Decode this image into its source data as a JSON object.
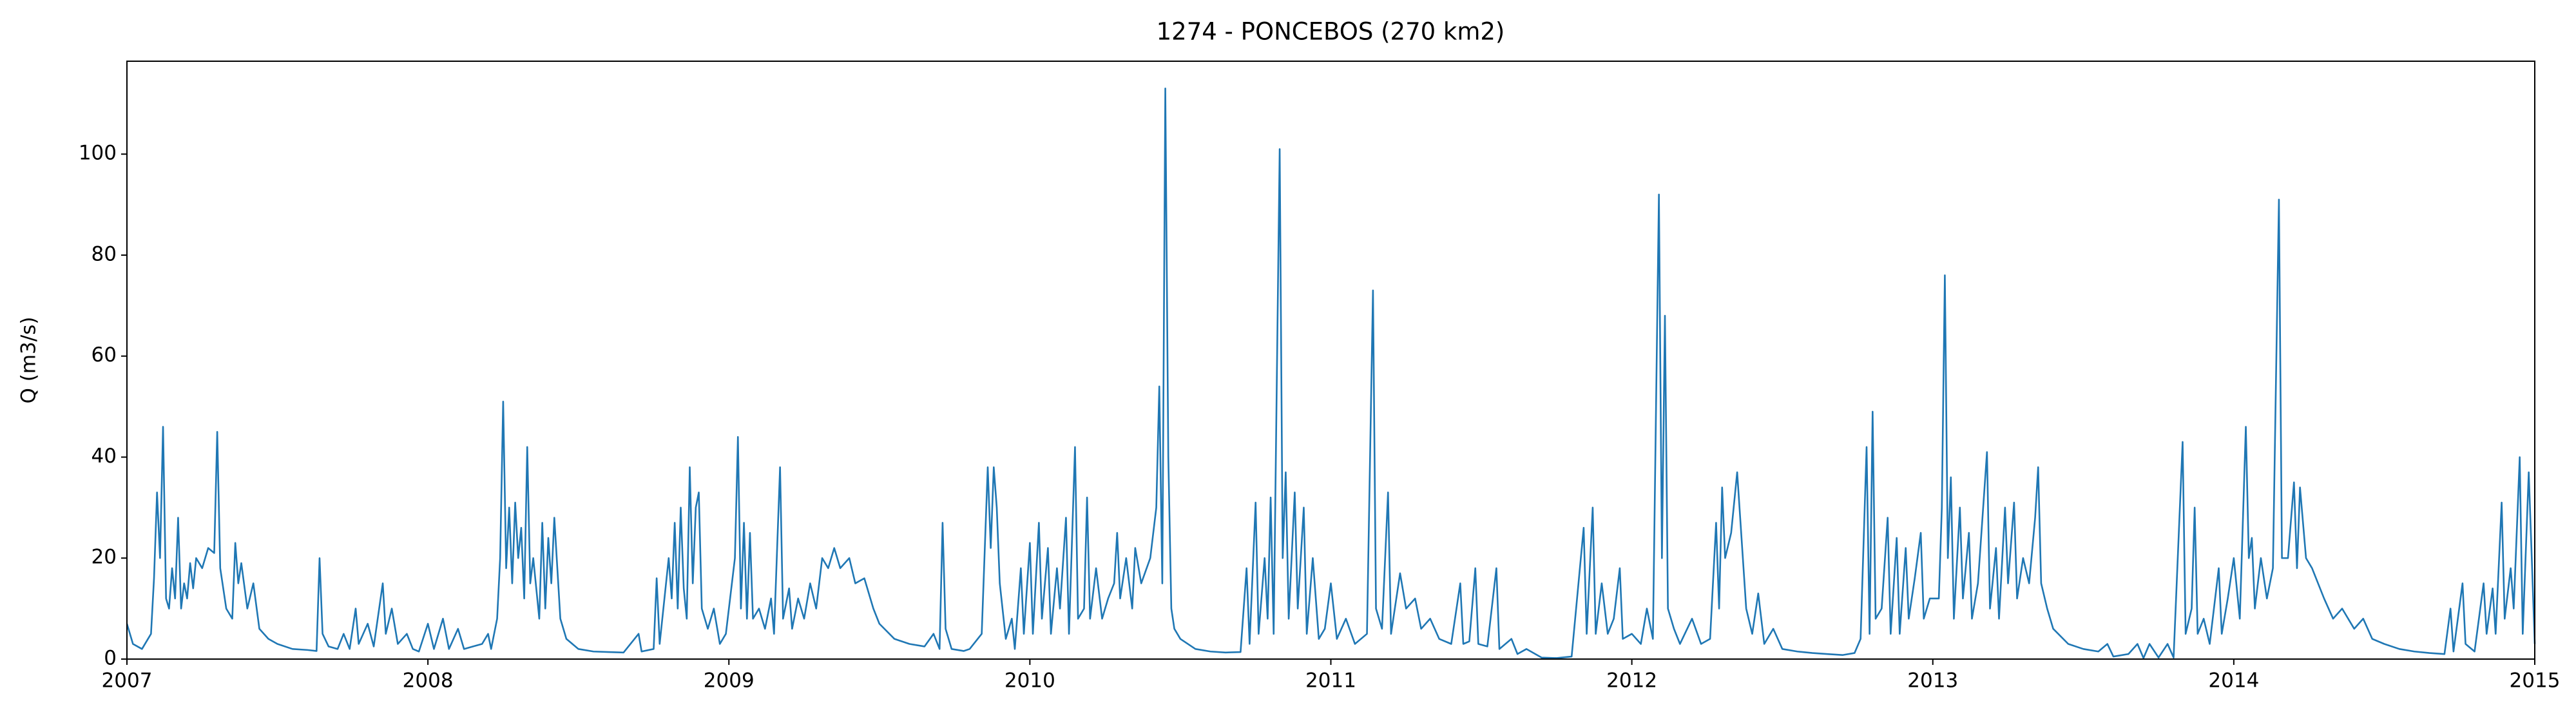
{
  "chart_data": {
    "type": "line",
    "title": "1274 - PONCEBOS (270 km2)",
    "y_label": "Q (m3/s)",
    "x": [
      2007.0,
      2007.02,
      2007.05,
      2007.08,
      2007.09,
      2007.1,
      2007.11,
      2007.12,
      2007.13,
      2007.14,
      2007.15,
      2007.16,
      2007.17,
      2007.18,
      2007.19,
      2007.2,
      2007.21,
      2007.22,
      2007.23,
      2007.25,
      2007.27,
      2007.29,
      2007.3,
      2007.31,
      2007.33,
      2007.35,
      2007.36,
      2007.37,
      2007.38,
      2007.4,
      2007.42,
      2007.44,
      2007.47,
      2007.5,
      2007.55,
      2007.6,
      2007.63,
      2007.64,
      2007.65,
      2007.67,
      2007.7,
      2007.72,
      2007.74,
      2007.76,
      2007.77,
      2007.8,
      2007.82,
      2007.85,
      2007.86,
      2007.88,
      2007.9,
      2007.93,
      2007.95,
      2007.97,
      2008.0,
      2008.02,
      2008.05,
      2008.07,
      2008.1,
      2008.12,
      2008.15,
      2008.18,
      2008.2,
      2008.21,
      2008.23,
      2008.24,
      2008.25,
      2008.26,
      2008.27,
      2008.28,
      2008.29,
      2008.3,
      2008.31,
      2008.32,
      2008.33,
      2008.34,
      2008.35,
      2008.37,
      2008.38,
      2008.39,
      2008.4,
      2008.41,
      2008.42,
      2008.44,
      2008.46,
      2008.5,
      2008.55,
      2008.6,
      2008.65,
      2008.7,
      2008.71,
      2008.75,
      2008.76,
      2008.77,
      2008.8,
      2008.81,
      2008.82,
      2008.83,
      2008.84,
      2008.85,
      2008.86,
      2008.87,
      2008.88,
      2008.89,
      2008.9,
      2008.91,
      2008.93,
      2008.95,
      2008.97,
      2008.99,
      2009.02,
      2009.03,
      2009.04,
      2009.05,
      2009.06,
      2009.07,
      2009.08,
      2009.1,
      2009.12,
      2009.14,
      2009.15,
      2009.17,
      2009.18,
      2009.2,
      2009.21,
      2009.23,
      2009.25,
      2009.27,
      2009.29,
      2009.31,
      2009.33,
      2009.35,
      2009.37,
      2009.4,
      2009.42,
      2009.45,
      2009.48,
      2009.5,
      2009.55,
      2009.6,
      2009.65,
      2009.68,
      2009.7,
      2009.71,
      2009.72,
      2009.74,
      2009.78,
      2009.8,
      2009.84,
      2009.86,
      2009.87,
      2009.88,
      2009.89,
      2009.9,
      2009.92,
      2009.94,
      2009.95,
      2009.97,
      2009.98,
      2010.0,
      2010.01,
      2010.03,
      2010.04,
      2010.06,
      2010.07,
      2010.09,
      2010.1,
      2010.12,
      2010.13,
      2010.15,
      2010.16,
      2010.18,
      2010.19,
      2010.2,
      2010.22,
      2010.24,
      2010.26,
      2010.28,
      2010.29,
      2010.3,
      2010.32,
      2010.34,
      2010.35,
      2010.37,
      2010.4,
      2010.42,
      2010.43,
      2010.44,
      2010.45,
      2010.46,
      2010.47,
      2010.48,
      2010.5,
      2010.55,
      2010.6,
      2010.65,
      2010.7,
      2010.72,
      2010.73,
      2010.75,
      2010.76,
      2010.78,
      2010.79,
      2010.8,
      2010.81,
      2010.83,
      2010.84,
      2010.85,
      2010.86,
      2010.88,
      2010.89,
      2010.91,
      2010.92,
      2010.94,
      2010.96,
      2010.98,
      2011.0,
      2011.02,
      2011.05,
      2011.08,
      2011.12,
      2011.14,
      2011.15,
      2011.17,
      2011.19,
      2011.2,
      2011.23,
      2011.25,
      2011.28,
      2011.3,
      2011.33,
      2011.36,
      2011.4,
      2011.43,
      2011.44,
      2011.46,
      2011.48,
      2011.49,
      2011.52,
      2011.55,
      2011.56,
      2011.6,
      2011.62,
      2011.65,
      2011.7,
      2011.75,
      2011.8,
      2011.84,
      2011.85,
      2011.87,
      2011.88,
      2011.9,
      2011.92,
      2011.94,
      2011.96,
      2011.97,
      2012.0,
      2012.03,
      2012.05,
      2012.07,
      2012.09,
      2012.1,
      2012.11,
      2012.12,
      2012.14,
      2012.16,
      2012.2,
      2012.23,
      2012.26,
      2012.28,
      2012.29,
      2012.3,
      2012.31,
      2012.33,
      2012.35,
      2012.36,
      2012.38,
      2012.4,
      2012.42,
      2012.44,
      2012.47,
      2012.5,
      2012.55,
      2012.6,
      2012.65,
      2012.7,
      2012.74,
      2012.76,
      2012.78,
      2012.79,
      2012.8,
      2012.81,
      2012.83,
      2012.85,
      2012.86,
      2012.88,
      2012.89,
      2012.91,
      2012.92,
      2012.94,
      2012.96,
      2012.97,
      2012.99,
      2013.02,
      2013.03,
      2013.04,
      2013.05,
      2013.06,
      2013.07,
      2013.09,
      2013.1,
      2013.12,
      2013.13,
      2013.15,
      2013.18,
      2013.19,
      2013.21,
      2013.22,
      2013.24,
      2013.25,
      2013.27,
      2013.28,
      2013.3,
      2013.32,
      2013.34,
      2013.35,
      2013.36,
      2013.38,
      2013.4,
      2013.45,
      2013.5,
      2013.55,
      2013.58,
      2013.6,
      2013.65,
      2013.68,
      2013.7,
      2013.72,
      2013.75,
      2013.78,
      2013.8,
      2013.83,
      2013.84,
      2013.86,
      2013.87,
      2013.88,
      2013.9,
      2013.92,
      2013.95,
      2013.96,
      2013.98,
      2014.0,
      2014.02,
      2014.04,
      2014.05,
      2014.06,
      2014.07,
      2014.09,
      2014.11,
      2014.13,
      2014.15,
      2014.16,
      2014.18,
      2014.2,
      2014.21,
      2014.22,
      2014.24,
      2014.26,
      2014.28,
      2014.3,
      2014.33,
      2014.36,
      2014.4,
      2014.43,
      2014.46,
      2014.5,
      2014.55,
      2014.6,
      2014.65,
      2014.7,
      2014.72,
      2014.73,
      2014.76,
      2014.77,
      2014.8,
      2014.83,
      2014.84,
      2014.86,
      2014.87,
      2014.89,
      2014.9,
      2014.92,
      2014.93,
      2014.95,
      2014.96,
      2014.98,
      2015.0
    ],
    "series": [
      {
        "color": "#1f77b4",
        "values": [
          7,
          3,
          2,
          5,
          16,
          33,
          20,
          46,
          12,
          10,
          18,
          12,
          28,
          10,
          15,
          12,
          19,
          14,
          20,
          18,
          22,
          21,
          45,
          18,
          10,
          8,
          23,
          15,
          19,
          10,
          15,
          6,
          4,
          3,
          2,
          1.8,
          1.6,
          20,
          5,
          2.5,
          2,
          5,
          2,
          10,
          3,
          7,
          2.5,
          15,
          5,
          10,
          3,
          5,
          2,
          1.5,
          7,
          2,
          8,
          2,
          6,
          2,
          2.5,
          3,
          5,
          2,
          8,
          20,
          51,
          18,
          30,
          15,
          31,
          20,
          26,
          12,
          42,
          15,
          20,
          8,
          27,
          10,
          24,
          15,
          28,
          8,
          4,
          2,
          1.5,
          1.4,
          1.3,
          5,
          1.5,
          2,
          16,
          3,
          20,
          12,
          27,
          10,
          30,
          14,
          8,
          38,
          15,
          30,
          33,
          10,
          6,
          10,
          3,
          5,
          20,
          44,
          10,
          27,
          8,
          25,
          8,
          10,
          6,
          12,
          5,
          38,
          8,
          14,
          6,
          12,
          8,
          15,
          10,
          20,
          18,
          22,
          18,
          20,
          15,
          16,
          10,
          7,
          4,
          3,
          2.5,
          5,
          2,
          27,
          6,
          2,
          1.6,
          2,
          5,
          38,
          22,
          38,
          30,
          15,
          4,
          8,
          2,
          18,
          5,
          23,
          5,
          27,
          8,
          22,
          5,
          18,
          10,
          28,
          5,
          42,
          8,
          10,
          32,
          8,
          18,
          8,
          12,
          15,
          25,
          12,
          20,
          10,
          22,
          15,
          20,
          30,
          54,
          15,
          113,
          40,
          10,
          6,
          4,
          2,
          1.5,
          1.3,
          1.4,
          18,
          3,
          31,
          5,
          20,
          8,
          32,
          5,
          101,
          20,
          37,
          8,
          33,
          10,
          30,
          5,
          20,
          4,
          6,
          15,
          4,
          8,
          3,
          5,
          73,
          10,
          6,
          33,
          5,
          17,
          10,
          12,
          6,
          8,
          4,
          3,
          15,
          3,
          3.5,
          18,
          3,
          2.5,
          18,
          2,
          4,
          1,
          2,
          0.3,
          0.2,
          0.5,
          26,
          5,
          30,
          5,
          15,
          5,
          8,
          18,
          4,
          5,
          3,
          10,
          4,
          92,
          20,
          68,
          10,
          6,
          3,
          8,
          3,
          4,
          27,
          10,
          34,
          20,
          25,
          37,
          28,
          10,
          5,
          13,
          3,
          6,
          2,
          1.5,
          1.2,
          1,
          0.8,
          1.2,
          4,
          42,
          5,
          49,
          8,
          10,
          28,
          5,
          24,
          5,
          22,
          8,
          16,
          25,
          8,
          12,
          12,
          30,
          76,
          20,
          36,
          8,
          30,
          12,
          25,
          8,
          15,
          41,
          10,
          22,
          8,
          30,
          15,
          31,
          12,
          20,
          15,
          28,
          38,
          15,
          10,
          6,
          3,
          2,
          1.5,
          3,
          0.5,
          1,
          3,
          0.2,
          3,
          0.3,
          3,
          0.3,
          43,
          5,
          10,
          30,
          5,
          8,
          3,
          18,
          5,
          12,
          20,
          8,
          46,
          20,
          24,
          10,
          20,
          12,
          18,
          91,
          20,
          20,
          35,
          18,
          34,
          20,
          18,
          15,
          12,
          8,
          10,
          6,
          8,
          4,
          3,
          2,
          1.5,
          1.2,
          1,
          10,
          1.5,
          15,
          3,
          1.5,
          15,
          5,
          14,
          5,
          31,
          8,
          18,
          10,
          40,
          5,
          37,
          3
        ]
      }
    ],
    "xlim": [
      2007,
      2015
    ],
    "xticks": [
      2007,
      2008,
      2009,
      2010,
      2011,
      2012,
      2013,
      2014,
      2015
    ],
    "ylim": [
      0,
      118.4
    ],
    "yticks": [
      0,
      20,
      40,
      60,
      80,
      100
    ]
  }
}
